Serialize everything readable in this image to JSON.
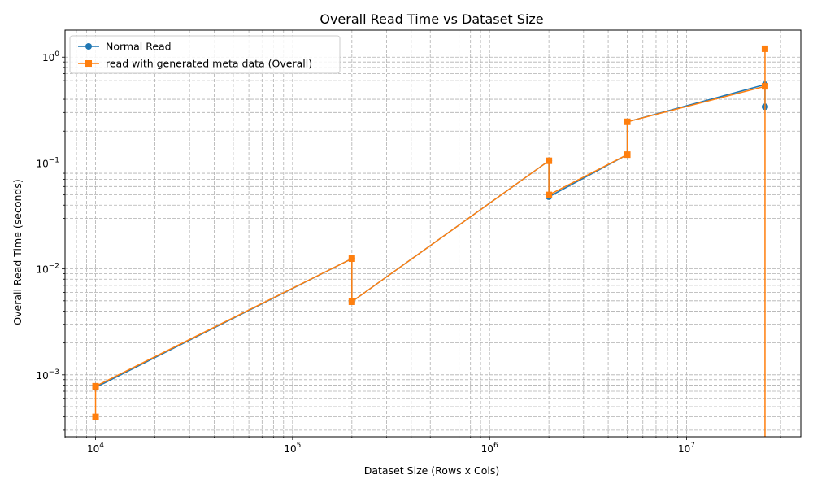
{
  "chart_data": {
    "type": "line",
    "title": "Overall Read Time vs Dataset Size",
    "xlabel": "Dataset Size (Rows x Cols)",
    "ylabel": "Overall Read Time (seconds)",
    "xscale": "log",
    "yscale": "log",
    "xlim": [
      7000,
      38000000
    ],
    "ylim": [
      0.00026,
      1.8
    ],
    "grid": "both-major-minor-dashed",
    "legend_position": "top-left",
    "x_ticks": [
      {
        "value": 10000,
        "base": "10",
        "exp": "4"
      },
      {
        "value": 100000,
        "base": "10",
        "exp": "5"
      },
      {
        "value": 1000000,
        "base": "10",
        "exp": "6"
      },
      {
        "value": 10000000,
        "base": "10",
        "exp": "7"
      }
    ],
    "y_ticks": [
      {
        "value": 0.001,
        "base": "10",
        "exp": "−3"
      },
      {
        "value": 0.01,
        "base": "10",
        "exp": "−2"
      },
      {
        "value": 0.1,
        "base": "10",
        "exp": "−1"
      },
      {
        "value": 1,
        "base": "10",
        "exp": "0"
      }
    ],
    "series": [
      {
        "name": "Normal Read",
        "color": "#1f77b4",
        "marker": "circle",
        "points": [
          [
            10000,
            0.00078
          ],
          [
            10000,
            0.00076
          ],
          [
            200000,
            0.0125
          ],
          [
            200000,
            0.0049
          ],
          [
            2000000,
            0.105
          ],
          [
            2000000,
            0.048
          ],
          [
            5000000,
            0.12
          ],
          [
            5000000,
            0.245
          ],
          [
            25000000,
            0.55
          ],
          [
            25000000,
            0.34
          ]
        ]
      },
      {
        "name": "read with generated meta data (Overall)",
        "color": "#ff7f0e",
        "marker": "square",
        "points": [
          [
            10000,
            0.0004
          ],
          [
            10000,
            0.00078
          ],
          [
            200000,
            0.0125
          ],
          [
            200000,
            0.0049
          ],
          [
            2000000,
            0.105
          ],
          [
            2000000,
            0.05
          ],
          [
            5000000,
            0.12
          ],
          [
            5000000,
            0.245
          ],
          [
            25000000,
            0.53
          ],
          [
            25000000,
            1.2
          ],
          [
            25000000,
            0.0001
          ]
        ]
      }
    ]
  }
}
